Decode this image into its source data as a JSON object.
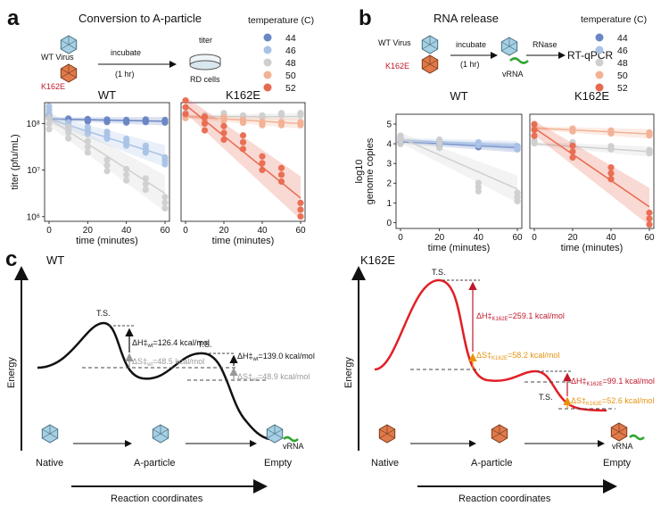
{
  "panels": {
    "a": {
      "label": "a",
      "title": "Conversion to A-particle",
      "wt_virus": "WT Virus",
      "k162e": "K162E",
      "incubate": "incubate",
      "incubate_time": "(1 hr)",
      "titer": "titer",
      "rd_cells": "RD cells",
      "legend_title": "temperature (C)"
    },
    "b": {
      "label": "b",
      "title": "RNA release",
      "wt_virus": "WT Virus",
      "k162e": "K162E",
      "incubate": "incubate",
      "incubate_time": "(1 hr)",
      "vrna": "vRNA",
      "rnase": "RNase",
      "rtqpcr": "RT-qPCR",
      "legend_title": "temperature (C)"
    },
    "c": {
      "label": "c",
      "wt_title": "WT",
      "k_title": "K162E",
      "energy": "Energy",
      "reaction": "Reaction coordinates",
      "native": "Native",
      "aparticle": "A-particle",
      "empty": "Empty",
      "vrna": "vRNA",
      "ts": "T.S.",
      "wt_dh1": "ΔH‡",
      "wt_dh1_sub": "wt",
      "wt_dh1_val": "=126.4 kcal/mol",
      "wt_ds1": "ΔS‡",
      "wt_ds1_sub": "wt",
      "wt_ds1_val": "=48.5 kcal/mol",
      "wt_dh2": "ΔH‡",
      "wt_dh2_sub": "wt",
      "wt_dh2_val": "=139.0 kcal/mol",
      "wt_ds2": "ΔS‡",
      "wt_ds2_sub": "wt",
      "wt_ds2_val": "=48.9 kcal/mol",
      "k_dh1": "ΔH‡",
      "k_dh1_sub": "K162E",
      "k_dh1_val": "=259.1 kcal/mol",
      "k_ds1": "ΔS‡",
      "k_ds1_sub": "K162E",
      "k_ds1_val": "=58.2 kcal/mol",
      "k_dh2": "ΔH‡",
      "k_dh2_sub": "K162E",
      "k_dh2_val": "=99.1 kcal/mol",
      "k_ds2": "ΔS‡",
      "k_ds2_sub": "K162E",
      "k_ds2_val": "=52.6 kcal/mol"
    }
  },
  "legend": {
    "temperatures": [
      "44",
      "46",
      "48",
      "50",
      "52"
    ],
    "colors": [
      "#6a86c4",
      "#a9c2e6",
      "#cfcfcf",
      "#f2b295",
      "#e8694e"
    ]
  },
  "chart_data": [
    {
      "type": "scatter",
      "panel": "a-WT",
      "title": "WT",
      "xlabel": "time (minutes)",
      "ylabel": "titer (pfu/mL)",
      "xticks": [
        "0",
        "20",
        "40",
        "60"
      ],
      "yticks": [
        "10⁶",
        "10⁷",
        "10⁸"
      ],
      "log_y": true,
      "xlim": [
        0,
        60
      ],
      "ylim_log10": [
        5.9,
        8.45
      ],
      "x": [
        0,
        10,
        20,
        30,
        40,
        50,
        60
      ],
      "series": [
        {
          "name": "44",
          "values": [
            8.15,
            8.08,
            8.07,
            8.06,
            8.05,
            8.06,
            8.05
          ],
          "fit": [
            8.1,
            8.05
          ]
        },
        {
          "name": "46",
          "values": [
            8.3,
            7.95,
            7.85,
            7.75,
            7.6,
            7.45,
            7.2
          ],
          "fit": [
            8.1,
            7.3
          ]
        },
        {
          "name": "48",
          "values": [
            8.0,
            7.8,
            7.5,
            7.1,
            6.9,
            6.7,
            6.3
          ],
          "fit": [
            8.1,
            6.5
          ]
        }
      ]
    },
    {
      "type": "scatter",
      "panel": "a-K162E",
      "title": "K162E",
      "xlabel": "time (minutes)",
      "xticks": [
        "0",
        "20",
        "40",
        "60"
      ],
      "log_y": true,
      "xlim": [
        0,
        60
      ],
      "ylim_log10": [
        5.9,
        8.45
      ],
      "x": [
        0,
        10,
        20,
        30,
        40,
        50,
        60
      ],
      "series": [
        {
          "name": "48",
          "values": [
            8.2,
            8.15,
            8.2,
            8.15,
            8.15,
            8.2,
            8.2
          ],
          "fit": [
            8.15,
            8.15
          ]
        },
        {
          "name": "50",
          "values": [
            8.15,
            8.1,
            8.1,
            8.05,
            8.0,
            8.0,
            8.0
          ],
          "fit": [
            8.15,
            8.0
          ]
        },
        {
          "name": "52",
          "values": [
            8.35,
            8.0,
            7.8,
            7.6,
            7.15,
            6.9,
            6.15
          ],
          "fit": [
            8.4,
            6.4
          ]
        }
      ]
    },
    {
      "type": "scatter",
      "panel": "b-WT",
      "title": "WT",
      "xlabel": "time (minutes)",
      "ylabel": "log10 genome copies",
      "xticks": [
        "0",
        "20",
        "40",
        "60"
      ],
      "yticks": [
        "0",
        "1",
        "2",
        "3",
        "4",
        "5"
      ],
      "xlim": [
        0,
        60
      ],
      "ylim": [
        -0.3,
        5.5
      ],
      "x": [
        0,
        20,
        40,
        60
      ],
      "series": [
        {
          "name": "44",
          "values": [
            4.1,
            4.0,
            3.9,
            3.8
          ],
          "fit": [
            4.1,
            3.8
          ]
        },
        {
          "name": "46",
          "values": [
            4.3,
            4.1,
            4.0,
            3.8
          ],
          "fit": [
            4.2,
            3.9
          ]
        },
        {
          "name": "48",
          "values": [
            4.2,
            4.0,
            1.8,
            1.3
          ],
          "fit": [
            4.3,
            1.7
          ]
        }
      ]
    },
    {
      "type": "scatter",
      "panel": "b-K162E",
      "title": "K162E",
      "xlabel": "time (minutes)",
      "xticks": [
        "0",
        "20",
        "40",
        "60"
      ],
      "xlim": [
        0,
        60
      ],
      "ylim": [
        -0.3,
        5.5
      ],
      "x": [
        0,
        20,
        40,
        60
      ],
      "series": [
        {
          "name": "48",
          "values": [
            4.1,
            4.0,
            3.8,
            3.6
          ],
          "fit": [
            4.0,
            3.6
          ]
        },
        {
          "name": "50",
          "values": [
            4.8,
            4.7,
            4.6,
            4.5
          ],
          "fit": [
            4.8,
            4.5
          ]
        },
        {
          "name": "52",
          "values": [
            4.7,
            3.6,
            2.5,
            0.2
          ],
          "fit": [
            4.8,
            0.8
          ]
        }
      ]
    }
  ]
}
